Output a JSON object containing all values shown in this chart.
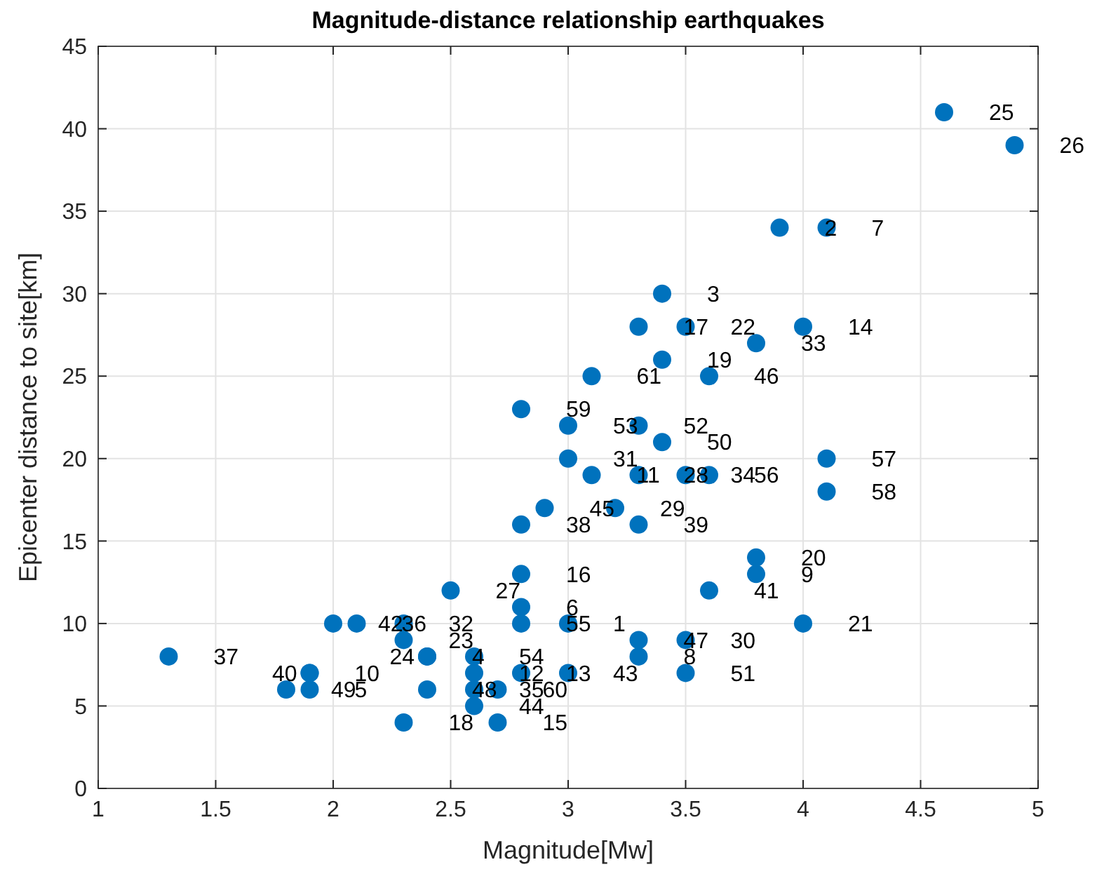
{
  "chart_data": {
    "type": "scatter",
    "title": "Magnitude-distance relationship earthquakes",
    "xlabel": "Magnitude[Mw]",
    "ylabel": "Epicenter distance to site[km]",
    "x": [
      3.0,
      3.9,
      3.4,
      2.4,
      1.9,
      2.8,
      4.1,
      3.3,
      3.8,
      1.9,
      3.1,
      2.6,
      2.8,
      4.0,
      2.7,
      2.8,
      3.3,
      2.3,
      3.4,
      3.8,
      4.0,
      3.5,
      2.3,
      2.4,
      4.6,
      4.9,
      2.5,
      3.3,
      3.2,
      3.5,
      3.0,
      2.3,
      3.8,
      3.5,
      2.6,
      2.1,
      1.3,
      2.8,
      3.3,
      1.9,
      3.6,
      2.0,
      3.0,
      2.6,
      2.9,
      3.6,
      3.3,
      2.4,
      1.8,
      3.4,
      3.5,
      3.3,
      3.0,
      2.6,
      2.8,
      3.6,
      4.1,
      4.1,
      2.8,
      2.7,
      3.1
    ],
    "values": [
      10,
      34,
      30,
      8,
      6,
      11,
      34,
      8,
      13,
      7,
      19,
      7,
      7,
      28,
      4,
      13,
      28,
      4,
      26,
      14,
      10,
      28,
      9,
      8,
      41,
      39,
      12,
      19,
      17,
      9,
      20,
      10,
      27,
      19,
      6,
      10,
      8,
      16,
      16,
      7,
      12,
      10,
      7,
      5,
      17,
      25,
      9,
      6,
      6,
      21,
      7,
      22,
      22,
      8,
      10,
      19,
      20,
      18,
      23,
      6,
      25
    ],
    "color": "#0072bd",
    "marker": "circle",
    "grid": true,
    "xlim": [
      1,
      5
    ],
    "xticks": [
      1,
      1.5,
      2,
      2.5,
      3,
      3.5,
      4,
      4.5,
      5
    ],
    "ylim": [
      0,
      45
    ],
    "yticks": [
      0,
      5,
      10,
      15,
      20,
      25,
      30,
      35,
      40,
      45
    ],
    "annotations": [
      {
        "text": "1",
        "x": 3.0,
        "y": 10
      },
      {
        "text": "2",
        "x": 3.9,
        "y": 34
      },
      {
        "text": "3",
        "x": 3.4,
        "y": 30
      },
      {
        "text": "4",
        "x": 2.4,
        "y": 8
      },
      {
        "text": "5",
        "x": 1.9,
        "y": 6
      },
      {
        "text": "6",
        "x": 2.8,
        "y": 11
      },
      {
        "text": "7",
        "x": 4.1,
        "y": 34
      },
      {
        "text": "8",
        "x": 3.3,
        "y": 8
      },
      {
        "text": "9",
        "x": 3.8,
        "y": 13
      },
      {
        "text": "10",
        "x": 1.9,
        "y": 7
      },
      {
        "text": "11",
        "x": 3.1,
        "y": 19
      },
      {
        "text": "12",
        "x": 2.6,
        "y": 7
      },
      {
        "text": "13",
        "x": 2.8,
        "y": 7
      },
      {
        "text": "14",
        "x": 4.0,
        "y": 28
      },
      {
        "text": "15",
        "x": 2.7,
        "y": 4
      },
      {
        "text": "16",
        "x": 2.8,
        "y": 13
      },
      {
        "text": "17",
        "x": 3.3,
        "y": 28
      },
      {
        "text": "18",
        "x": 2.3,
        "y": 4
      },
      {
        "text": "19",
        "x": 3.4,
        "y": 26
      },
      {
        "text": "20",
        "x": 3.8,
        "y": 14
      },
      {
        "text": "21",
        "x": 4.0,
        "y": 10
      },
      {
        "text": "22",
        "x": 3.5,
        "y": 28
      },
      {
        "text": "23",
        "x": 2.3,
        "y": 9
      },
      {
        "text": "24",
        "x": 2.4,
        "y": 8
      },
      {
        "text": "25",
        "x": 4.6,
        "y": 41
      },
      {
        "text": "26",
        "x": 4.9,
        "y": 39
      },
      {
        "text": "27",
        "x": 2.5,
        "y": 12
      },
      {
        "text": "28",
        "x": 3.3,
        "y": 19
      },
      {
        "text": "29",
        "x": 3.2,
        "y": 17
      },
      {
        "text": "30",
        "x": 3.5,
        "y": 9
      },
      {
        "text": "31",
        "x": 3.0,
        "y": 20
      },
      {
        "text": "32",
        "x": 2.3,
        "y": 10
      },
      {
        "text": "33",
        "x": 3.8,
        "y": 27
      },
      {
        "text": "34",
        "x": 3.5,
        "y": 19
      },
      {
        "text": "35",
        "x": 2.6,
        "y": 6
      },
      {
        "text": "36",
        "x": 2.1,
        "y": 10
      },
      {
        "text": "37",
        "x": 1.3,
        "y": 8
      },
      {
        "text": "38",
        "x": 2.8,
        "y": 16
      },
      {
        "text": "39",
        "x": 3.3,
        "y": 16
      },
      {
        "text": "40",
        "x": 1.9,
        "y": 7
      },
      {
        "text": "41",
        "x": 3.6,
        "y": 12
      },
      {
        "text": "42",
        "x": 2.0,
        "y": 10
      },
      {
        "text": "43",
        "x": 3.0,
        "y": 7
      },
      {
        "text": "44",
        "x": 2.6,
        "y": 5
      },
      {
        "text": "45",
        "x": 2.9,
        "y": 17
      },
      {
        "text": "46",
        "x": 3.6,
        "y": 25
      },
      {
        "text": "47",
        "x": 3.3,
        "y": 9
      },
      {
        "text": "48",
        "x": 2.4,
        "y": 6
      },
      {
        "text": "49",
        "x": 1.8,
        "y": 6
      },
      {
        "text": "50",
        "x": 3.4,
        "y": 21
      },
      {
        "text": "51",
        "x": 3.5,
        "y": 7
      },
      {
        "text": "52",
        "x": 3.3,
        "y": 22
      },
      {
        "text": "53",
        "x": 3.0,
        "y": 22
      },
      {
        "text": "54",
        "x": 2.6,
        "y": 8
      },
      {
        "text": "55",
        "x": 2.8,
        "y": 10
      },
      {
        "text": "56",
        "x": 3.6,
        "y": 19
      },
      {
        "text": "57",
        "x": 4.1,
        "y": 20
      },
      {
        "text": "58",
        "x": 4.1,
        "y": 18
      },
      {
        "text": "59",
        "x": 2.8,
        "y": 23
      },
      {
        "text": "60",
        "x": 2.7,
        "y": 6
      },
      {
        "text": "61",
        "x": 3.1,
        "y": 25
      }
    ]
  }
}
